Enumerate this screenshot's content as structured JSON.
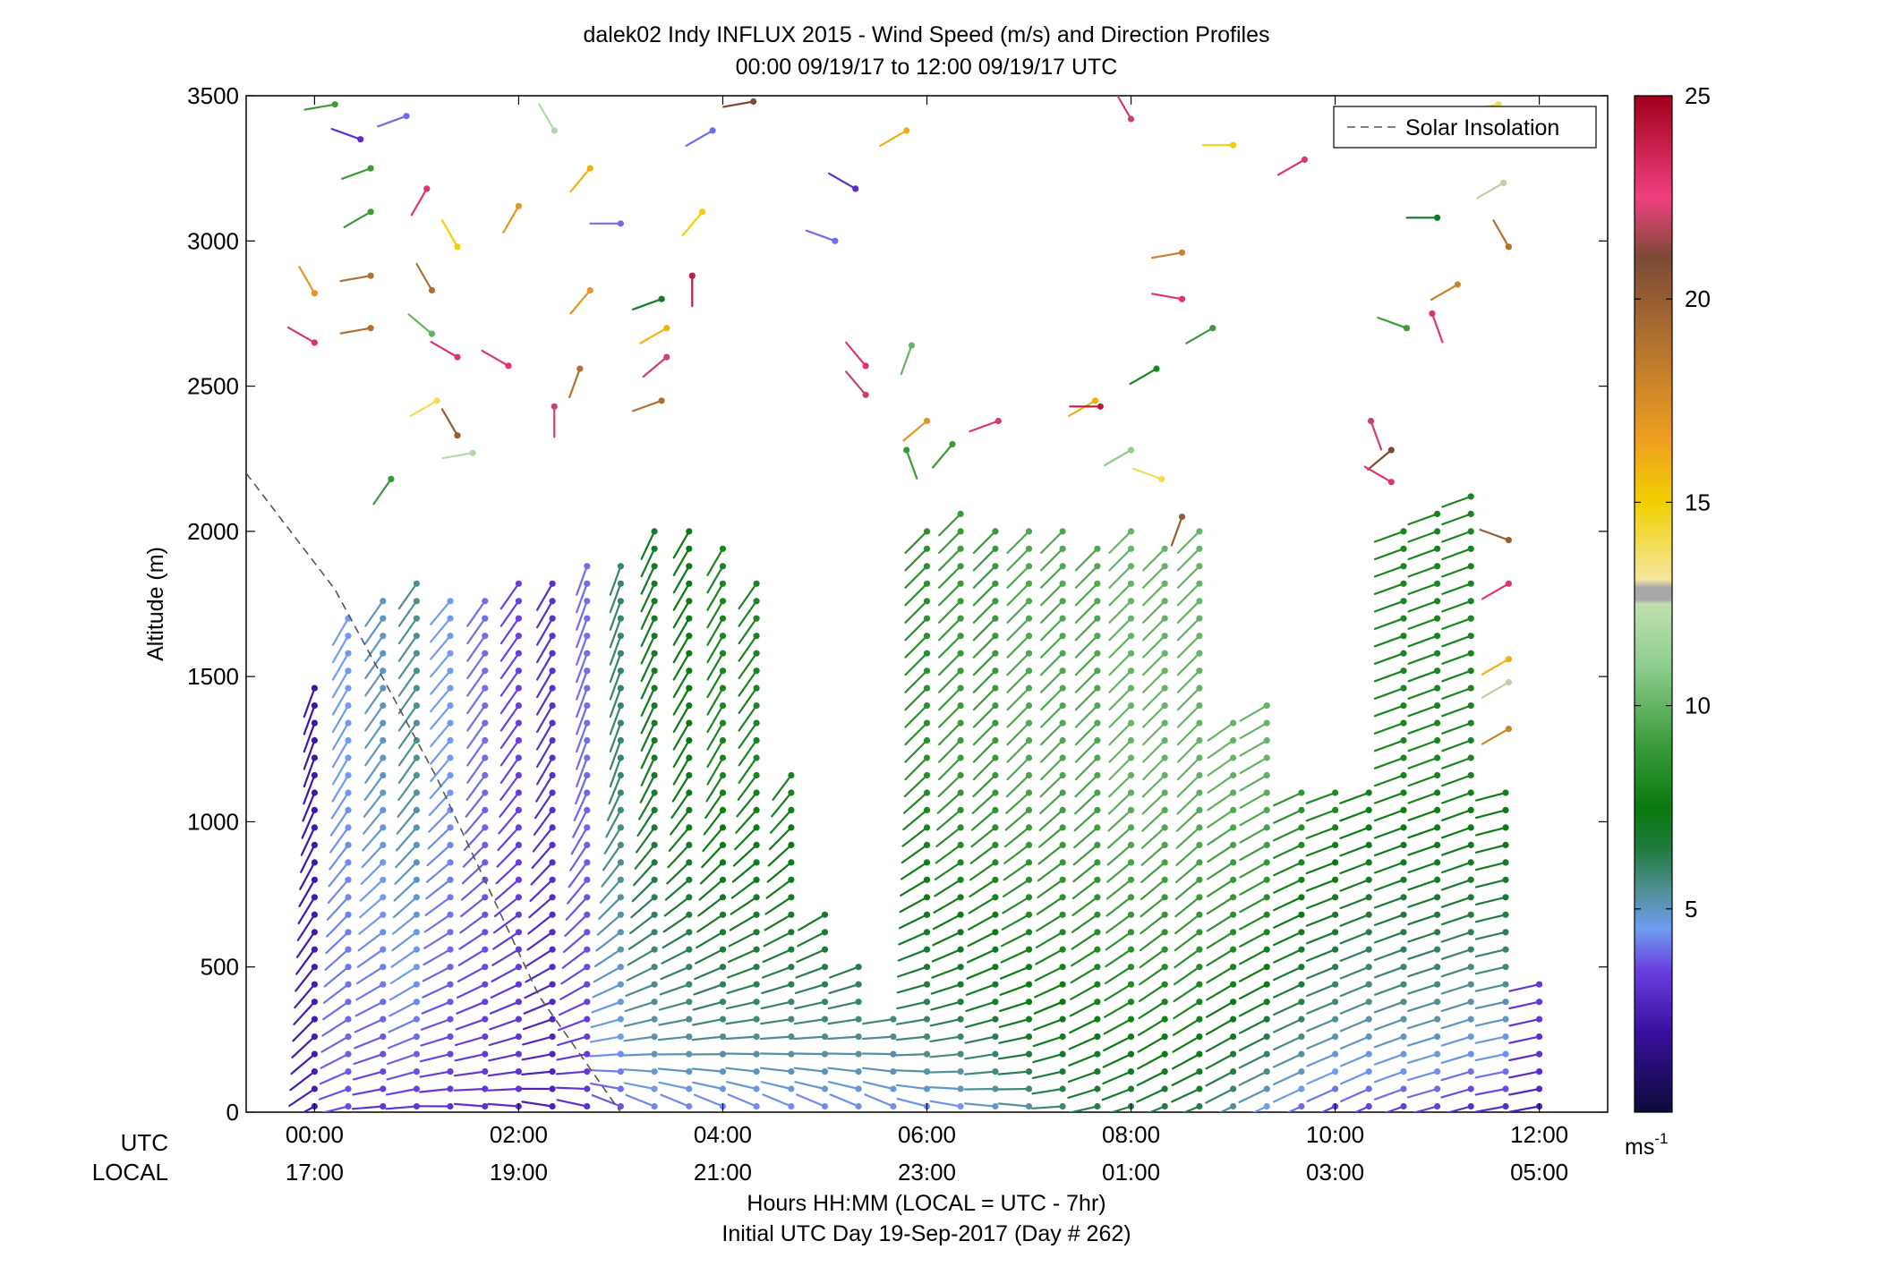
{
  "chart_data": {
    "type": "scatter",
    "title": "dalek02 Indy INFLUX 2015 - Wind Speed (m/s) and Direction Profiles",
    "subtitle": "00:00 09/19/17 to 12:00 09/19/17  UTC",
    "xlabel": "Hours HH:MM  (LOCAL = UTC - 7hr)",
    "xlabel2": "Initial UTC Day 19-Sep-2017 (Day # 262)",
    "ylabel": "Altitude (m)",
    "ylim": [
      0,
      3500
    ],
    "xlim_hours": [
      -0.67,
      12.67
    ],
    "y_ticks": [
      "0",
      "500",
      "1000",
      "1500",
      "2000",
      "2500",
      "3000",
      "3500"
    ],
    "y_tick_values": [
      0,
      500,
      1000,
      1500,
      2000,
      2500,
      3000,
      3500
    ],
    "x_row_labels": {
      "utc": "UTC",
      "local": "LOCAL"
    },
    "x_tick_hours": [
      0,
      2,
      4,
      6,
      8,
      10,
      12
    ],
    "x_ticks_utc": [
      "00:00",
      "02:00",
      "04:00",
      "06:00",
      "08:00",
      "10:00",
      "12:00"
    ],
    "x_ticks_local": [
      "17:00",
      "19:00",
      "21:00",
      "23:00",
      "01:00",
      "03:00",
      "05:00"
    ],
    "legend": {
      "entries": [
        "Solar Insolation"
      ],
      "position": "top-right"
    },
    "colorbar": {
      "min": 0,
      "max": 25,
      "ticks": [
        "5",
        "10",
        "15",
        "20",
        "25"
      ],
      "tick_values": [
        5,
        10,
        15,
        20,
        25
      ],
      "unit_base": "ms",
      "unit_exp": "-1",
      "stops": [
        {
          "v": 0,
          "c": "#0b0b3a"
        },
        {
          "v": 2,
          "c": "#3a0fa0"
        },
        {
          "v": 3.5,
          "c": "#6a3fe0"
        },
        {
          "v": 4.5,
          "c": "#6f9cf0"
        },
        {
          "v": 5.5,
          "c": "#4f8f92"
        },
        {
          "v": 6.5,
          "c": "#1e7a3c"
        },
        {
          "v": 7.5,
          "c": "#0a7a10"
        },
        {
          "v": 9,
          "c": "#3a9a3a"
        },
        {
          "v": 11,
          "c": "#8fcd8f"
        },
        {
          "v": 12.5,
          "c": "#c0e0b0"
        },
        {
          "v": 12.6,
          "c": "#a8a8a8"
        },
        {
          "v": 12.9,
          "c": "#a8a8a8"
        },
        {
          "v": 13.1,
          "c": "#f5e6a0"
        },
        {
          "v": 15,
          "c": "#f0d000"
        },
        {
          "v": 16.5,
          "c": "#f0a020"
        },
        {
          "v": 19,
          "c": "#b07030"
        },
        {
          "v": 21,
          "c": "#7a4a35"
        },
        {
          "v": 22.5,
          "c": "#f04080"
        },
        {
          "v": 25,
          "c": "#a0001a"
        }
      ]
    },
    "solar_insolation_line": {
      "x_hours": [
        -0.67,
        0.2,
        1.2,
        2.2,
        3.0
      ],
      "y": [
        2200,
        1800,
        1150,
        400,
        0
      ]
    },
    "profiles": [
      {
        "hour": 0.0,
        "top_m": 1500,
        "dir": [
          245,
          200
        ],
        "spd": [
          2.5,
          2.2
        ]
      },
      {
        "hour": 0.33,
        "top_m": 1750,
        "dir": [
          260,
          210
        ],
        "spd": [
          3.5,
          4.5
        ]
      },
      {
        "hour": 0.67,
        "top_m": 1800,
        "dir": [
          270,
          215
        ],
        "spd": [
          3.0,
          5.0
        ]
      },
      {
        "hour": 1.0,
        "top_m": 1850,
        "dir": [
          270,
          215
        ],
        "spd": [
          3.0,
          5.5
        ]
      },
      {
        "hour": 1.33,
        "top_m": 1800,
        "dir": [
          275,
          220
        ],
        "spd": [
          3.0,
          4.5
        ]
      },
      {
        "hour": 1.67,
        "top_m": 1800,
        "dir": [
          280,
          215
        ],
        "spd": [
          3.0,
          4.0
        ]
      },
      {
        "hour": 2.0,
        "top_m": 1850,
        "dir": [
          280,
          215
        ],
        "spd": [
          3.0,
          3.5
        ]
      },
      {
        "hour": 2.33,
        "top_m": 1850,
        "dir": [
          285,
          210
        ],
        "spd": [
          2.5,
          3.0
        ]
      },
      {
        "hour": 2.67,
        "top_m": 1900,
        "dir": [
          290,
          200
        ],
        "spd": [
          3.0,
          4.0
        ]
      },
      {
        "hour": 3.0,
        "top_m": 1900,
        "dir": [
          300,
          200
        ],
        "spd": [
          3.5,
          6.0
        ]
      },
      {
        "hour": 3.33,
        "top_m": 2000,
        "dir": [
          300,
          205
        ],
        "spd": [
          4.0,
          7.0
        ]
      },
      {
        "hour": 3.67,
        "top_m": 2000,
        "dir": [
          300,
          210
        ],
        "spd": [
          4.0,
          7.5
        ]
      },
      {
        "hour": 4.0,
        "top_m": 1950,
        "dir": [
          300,
          210
        ],
        "spd": [
          4.0,
          8.0
        ]
      },
      {
        "hour": 4.33,
        "top_m": 1850,
        "dir": [
          300,
          215
        ],
        "spd": [
          4.0,
          8.0
        ]
      },
      {
        "hour": 4.67,
        "top_m": 1200,
        "dir": [
          300,
          215
        ],
        "spd": [
          4.0,
          8.0
        ]
      },
      {
        "hour": 5.0,
        "top_m": 700,
        "dir": [
          300,
          215
        ],
        "spd": [
          4.0,
          8.0
        ]
      },
      {
        "hour": 5.33,
        "top_m": 500,
        "dir": [
          300,
          215
        ],
        "spd": [
          4.0,
          8.0
        ]
      },
      {
        "hour": 5.67,
        "top_m": 350,
        "dir": [
          300,
          215
        ],
        "spd": [
          4.0,
          8.0
        ]
      },
      {
        "hour": 6.0,
        "top_m": 2050,
        "dir": [
          290,
          225
        ],
        "spd": [
          4.0,
          8.5
        ]
      },
      {
        "hour": 6.33,
        "top_m": 2100,
        "dir": [
          285,
          225
        ],
        "spd": [
          4.0,
          9.0
        ]
      },
      {
        "hour": 6.67,
        "top_m": 2050,
        "dir": [
          280,
          225
        ],
        "spd": [
          4.5,
          9.0
        ]
      },
      {
        "hour": 7.0,
        "top_m": 2000,
        "dir": [
          280,
          225
        ],
        "spd": [
          5.0,
          9.5
        ]
      },
      {
        "hour": 7.33,
        "top_m": 2000,
        "dir": [
          270,
          225
        ],
        "spd": [
          5.5,
          9.5
        ]
      },
      {
        "hour": 7.67,
        "top_m": 1950,
        "dir": [
          260,
          225
        ],
        "spd": [
          6.0,
          9.5
        ]
      },
      {
        "hour": 8.0,
        "top_m": 2000,
        "dir": [
          255,
          225
        ],
        "spd": [
          6.0,
          10.0
        ]
      },
      {
        "hour": 8.33,
        "top_m": 1950,
        "dir": [
          250,
          225
        ],
        "spd": [
          6.0,
          10.0
        ]
      },
      {
        "hour": 8.67,
        "top_m": 2000,
        "dir": [
          250,
          225
        ],
        "spd": [
          6.0,
          10.0
        ]
      },
      {
        "hour": 9.0,
        "top_m": 1350,
        "dir": [
          245,
          235
        ],
        "spd": [
          5.0,
          10.0
        ]
      },
      {
        "hour": 9.33,
        "top_m": 1400,
        "dir": [
          245,
          240
        ],
        "spd": [
          4.0,
          10.0
        ]
      },
      {
        "hour": 9.67,
        "top_m": 1150,
        "dir": [
          245,
          245
        ],
        "spd": [
          3.5,
          9.0
        ]
      },
      {
        "hour": 10.0,
        "top_m": 1150,
        "dir": [
          245,
          250
        ],
        "spd": [
          3.0,
          8.5
        ]
      },
      {
        "hour": 10.33,
        "top_m": 1150,
        "dir": [
          245,
          250
        ],
        "spd": [
          3.0,
          8.0
        ]
      },
      {
        "hour": 10.67,
        "top_m": 2050,
        "dir": [
          250,
          250
        ],
        "spd": [
          3.0,
          8.0
        ]
      },
      {
        "hour": 11.0,
        "top_m": 2100,
        "dir": [
          255,
          250
        ],
        "spd": [
          3.0,
          8.0
        ]
      },
      {
        "hour": 11.33,
        "top_m": 2150,
        "dir": [
          255,
          250
        ],
        "spd": [
          2.5,
          8.0
        ]
      },
      {
        "hour": 11.67,
        "top_m": 1100,
        "dir": [
          260,
          255
        ],
        "spd": [
          2.5,
          8.0
        ]
      },
      {
        "hour": 12.0,
        "top_m": 450,
        "dir": [
          260,
          255
        ],
        "spd": [
          2.5,
          4.0
        ]
      }
    ],
    "upper_barbs": [
      {
        "hour": 0.0,
        "alt": 2650,
        "dir": 300,
        "spd": 23
      },
      {
        "hour": 0.0,
        "alt": 2820,
        "dir": 330,
        "spd": 17
      },
      {
        "hour": 0.2,
        "alt": 3470,
        "dir": 260,
        "spd": 9
      },
      {
        "hour": 0.45,
        "alt": 3350,
        "dir": 290,
        "spd": 3
      },
      {
        "hour": 0.55,
        "alt": 3250,
        "dir": 250,
        "spd": 9
      },
      {
        "hour": 0.55,
        "alt": 3100,
        "dir": 240,
        "spd": 9
      },
      {
        "hour": 0.55,
        "alt": 2880,
        "dir": 260,
        "spd": 19
      },
      {
        "hour": 0.55,
        "alt": 2700,
        "dir": 260,
        "spd": 19
      },
      {
        "hour": 0.75,
        "alt": 2180,
        "dir": 215,
        "spd": 9
      },
      {
        "hour": 0.9,
        "alt": 3430,
        "dir": 250,
        "spd": 4
      },
      {
        "hour": 1.1,
        "alt": 3180,
        "dir": 210,
        "spd": 23
      },
      {
        "hour": 1.15,
        "alt": 2830,
        "dir": 330,
        "spd": 19
      },
      {
        "hour": 1.15,
        "alt": 2680,
        "dir": 310,
        "spd": 10
      },
      {
        "hour": 1.2,
        "alt": 2450,
        "dir": 240,
        "spd": 14
      },
      {
        "hour": 1.4,
        "alt": 2600,
        "dir": 300,
        "spd": 23
      },
      {
        "hour": 1.4,
        "alt": 2330,
        "dir": 330,
        "spd": 20
      },
      {
        "hour": 1.4,
        "alt": 2980,
        "dir": 330,
        "spd": 15
      },
      {
        "hour": 1.55,
        "alt": 2270,
        "dir": 260,
        "spd": 12
      },
      {
        "hour": 1.9,
        "alt": 2570,
        "dir": 300,
        "spd": 23
      },
      {
        "hour": 2.0,
        "alt": 3120,
        "dir": 210,
        "spd": 17
      },
      {
        "hour": 2.35,
        "alt": 3380,
        "dir": 330,
        "spd": 12
      },
      {
        "hour": 2.35,
        "alt": 2430,
        "dir": 180,
        "spd": 22
      },
      {
        "hour": 2.6,
        "alt": 2560,
        "dir": 200,
        "spd": 19
      },
      {
        "hour": 2.7,
        "alt": 3250,
        "dir": 220,
        "spd": 16
      },
      {
        "hour": 2.7,
        "alt": 2830,
        "dir": 220,
        "spd": 17
      },
      {
        "hour": 3.0,
        "alt": 3060,
        "dir": 270,
        "spd": 4
      },
      {
        "hour": 3.4,
        "alt": 2800,
        "dir": 250,
        "spd": 7
      },
      {
        "hour": 3.4,
        "alt": 2450,
        "dir": 250,
        "spd": 19
      },
      {
        "hour": 3.45,
        "alt": 2700,
        "dir": 240,
        "spd": 16
      },
      {
        "hour": 3.45,
        "alt": 2600,
        "dir": 230,
        "spd": 22
      },
      {
        "hour": 3.7,
        "alt": 2880,
        "dir": 180,
        "spd": 24
      },
      {
        "hour": 3.8,
        "alt": 3100,
        "dir": 220,
        "spd": 15
      },
      {
        "hour": 3.9,
        "alt": 3380,
        "dir": 240,
        "spd": 4
      },
      {
        "hour": 4.3,
        "alt": 3480,
        "dir": 260,
        "spd": 21
      },
      {
        "hour": 5.1,
        "alt": 3000,
        "dir": 290,
        "spd": 4
      },
      {
        "hour": 5.3,
        "alt": 3180,
        "dir": 300,
        "spd": 3
      },
      {
        "hour": 5.4,
        "alt": 2570,
        "dir": 320,
        "spd": 23
      },
      {
        "hour": 5.4,
        "alt": 2470,
        "dir": 320,
        "spd": 22
      },
      {
        "hour": 5.8,
        "alt": 3380,
        "dir": 240,
        "spd": 16
      },
      {
        "hour": 5.8,
        "alt": 2280,
        "dir": 160,
        "spd": 9
      },
      {
        "hour": 5.85,
        "alt": 2640,
        "dir": 200,
        "spd": 10
      },
      {
        "hour": 6.0,
        "alt": 2380,
        "dir": 230,
        "spd": 17
      },
      {
        "hour": 6.25,
        "alt": 2300,
        "dir": 220,
        "spd": 9
      },
      {
        "hour": 6.7,
        "alt": 2380,
        "dir": 250,
        "spd": 23
      },
      {
        "hour": 7.65,
        "alt": 2450,
        "dir": 240,
        "spd": 16
      },
      {
        "hour": 7.7,
        "alt": 2430,
        "dir": 270,
        "spd": 24
      },
      {
        "hour": 8.0,
        "alt": 2280,
        "dir": 240,
        "spd": 11
      },
      {
        "hour": 8.0,
        "alt": 3420,
        "dir": 330,
        "spd": 22
      },
      {
        "hour": 8.25,
        "alt": 2560,
        "dir": 240,
        "spd": 8
      },
      {
        "hour": 8.3,
        "alt": 2180,
        "dir": 290,
        "spd": 14
      },
      {
        "hour": 8.5,
        "alt": 2050,
        "dir": 200,
        "spd": 20
      },
      {
        "hour": 8.5,
        "alt": 2800,
        "dir": 280,
        "spd": 23
      },
      {
        "hour": 8.5,
        "alt": 2960,
        "dir": 260,
        "spd": 18
      },
      {
        "hour": 8.8,
        "alt": 2700,
        "dir": 240,
        "spd": 9
      },
      {
        "hour": 9.0,
        "alt": 3330,
        "dir": 270,
        "spd": 15
      },
      {
        "hour": 9.7,
        "alt": 3280,
        "dir": 240,
        "spd": 23
      },
      {
        "hour": 10.35,
        "alt": 2380,
        "dir": 160,
        "spd": 22
      },
      {
        "hour": 10.55,
        "alt": 2280,
        "dir": 230,
        "spd": 21
      },
      {
        "hour": 10.55,
        "alt": 2170,
        "dir": 300,
        "spd": 23
      },
      {
        "hour": 10.7,
        "alt": 2700,
        "dir": 290,
        "spd": 9
      },
      {
        "hour": 10.95,
        "alt": 2750,
        "dir": 160,
        "spd": 23
      },
      {
        "hour": 11.0,
        "alt": 3080,
        "dir": 270,
        "spd": 7
      },
      {
        "hour": 11.2,
        "alt": 2850,
        "dir": 240,
        "spd": 18
      },
      {
        "hour": 11.6,
        "alt": 3470,
        "dir": 260,
        "spd": 14
      },
      {
        "hour": 11.65,
        "alt": 3200,
        "dir": 240,
        "spd": 13
      },
      {
        "hour": 11.7,
        "alt": 2980,
        "dir": 330,
        "spd": 19
      },
      {
        "hour": 11.7,
        "alt": 1970,
        "dir": 290,
        "spd": 20
      },
      {
        "hour": 11.7,
        "alt": 1820,
        "dir": 240,
        "spd": 23
      },
      {
        "hour": 11.7,
        "alt": 1560,
        "dir": 240,
        "spd": 16
      },
      {
        "hour": 11.7,
        "alt": 1480,
        "dir": 240,
        "spd": 13
      },
      {
        "hour": 11.7,
        "alt": 1320,
        "dir": 240,
        "spd": 18
      }
    ],
    "grid": false
  }
}
